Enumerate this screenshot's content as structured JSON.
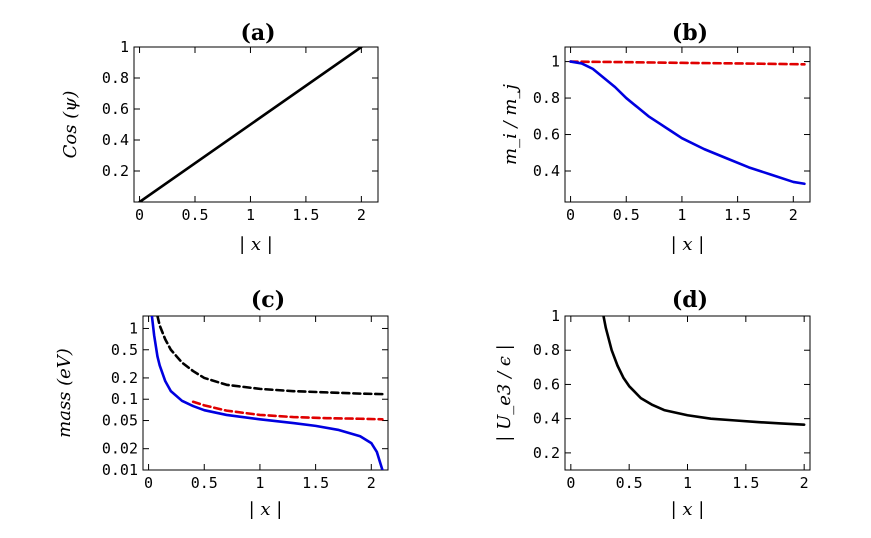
{
  "chart_data": [
    {
      "type": "line",
      "panel": "(a)",
      "title": "(a)",
      "xlabel": "| x |",
      "ylabel": "Cos (ψ)",
      "xlim": [
        -0.05,
        2.15
      ],
      "ylim": [
        0,
        1
      ],
      "yscale": "linear",
      "xticks": [
        0,
        0.5,
        1,
        1.5,
        2
      ],
      "xtick_labels": [
        "0",
        "0.5",
        "1",
        "1.5",
        "2"
      ],
      "yticks": [
        0.2,
        0.4,
        0.6,
        0.8,
        1
      ],
      "ytick_labels": [
        "0.2",
        "0.4",
        "0.6",
        "0.8",
        "1"
      ],
      "grid": false,
      "series": [
        {
          "style": "solid",
          "color": "#000000",
          "x": [
            0,
            2
          ],
          "y": [
            0,
            1
          ]
        }
      ]
    },
    {
      "type": "line",
      "panel": "(b)",
      "title": "(b)",
      "xlabel": "| x |",
      "ylabel": "m_i / m_j",
      "xlim": [
        -0.05,
        2.15
      ],
      "ylim": [
        0.23,
        1.08
      ],
      "yscale": "linear",
      "xticks": [
        0,
        0.5,
        1,
        1.5,
        2
      ],
      "xtick_labels": [
        "0",
        "0.5",
        "1",
        "1.5",
        "2"
      ],
      "yticks": [
        0.4,
        0.6,
        0.8,
        1
      ],
      "ytick_labels": [
        "0.4",
        "0.6",
        "0.8",
        "1"
      ],
      "grid": false,
      "series": [
        {
          "style": "dashed",
          "color": "#e00000",
          "x": [
            0,
            0.5,
            1,
            1.5,
            2.1
          ],
          "y": [
            1.0,
            0.997,
            0.993,
            0.99,
            0.985
          ]
        },
        {
          "style": "solid",
          "color": "#0000e0",
          "x": [
            0,
            0.1,
            0.2,
            0.3,
            0.4,
            0.5,
            0.6,
            0.7,
            0.8,
            0.9,
            1.0,
            1.2,
            1.4,
            1.6,
            1.8,
            2.0,
            2.1
          ],
          "y": [
            1.0,
            0.99,
            0.96,
            0.91,
            0.86,
            0.8,
            0.75,
            0.7,
            0.66,
            0.62,
            0.58,
            0.52,
            0.47,
            0.42,
            0.38,
            0.34,
            0.33
          ]
        }
      ]
    },
    {
      "type": "line",
      "panel": "(c)",
      "title": "(c)",
      "xlabel": "| x |",
      "ylabel": "mass (eV)",
      "xlim": [
        -0.05,
        2.15
      ],
      "ylim": [
        0.01,
        1.5
      ],
      "yscale": "log",
      "xticks": [
        0,
        0.5,
        1,
        1.5,
        2
      ],
      "xtick_labels": [
        "0",
        "0.5",
        "1",
        "1.5",
        "2"
      ],
      "yticks": [
        0.01,
        0.02,
        0.05,
        0.1,
        0.2,
        0.5,
        1
      ],
      "ytick_labels": [
        "0.01",
        "0.02",
        "0.05",
        "0.1",
        "0.2",
        "0.5",
        "1"
      ],
      "grid": false,
      "series": [
        {
          "style": "dashed",
          "color": "#000000",
          "x": [
            0.08,
            0.1,
            0.15,
            0.2,
            0.3,
            0.4,
            0.5,
            0.7,
            1.0,
            1.3,
            1.6,
            1.9,
            2.1
          ],
          "y": [
            1.5,
            1.1,
            0.7,
            0.5,
            0.33,
            0.25,
            0.2,
            0.16,
            0.14,
            0.13,
            0.125,
            0.12,
            0.118
          ]
        },
        {
          "style": "dashed",
          "color": "#e00000",
          "x": [
            0.4,
            0.5,
            0.7,
            1.0,
            1.3,
            1.6,
            1.9,
            2.1
          ],
          "y": [
            0.092,
            0.082,
            0.069,
            0.06,
            0.056,
            0.054,
            0.053,
            0.052
          ]
        },
        {
          "style": "solid",
          "color": "#0000e0",
          "x": [
            0.03,
            0.05,
            0.08,
            0.1,
            0.15,
            0.2,
            0.3,
            0.4,
            0.5,
            0.7,
            1.0,
            1.3,
            1.5,
            1.7,
            1.9,
            2.0,
            2.05,
            2.1
          ],
          "y": [
            1.5,
            0.8,
            0.4,
            0.3,
            0.18,
            0.13,
            0.095,
            0.08,
            0.07,
            0.06,
            0.052,
            0.046,
            0.042,
            0.037,
            0.03,
            0.024,
            0.018,
            0.01
          ]
        }
      ]
    },
    {
      "type": "line",
      "panel": "(d)",
      "title": "(d)",
      "xlabel": "| x |",
      "ylabel": "| U_e3 / ϵ |",
      "xlim": [
        -0.05,
        2.05
      ],
      "ylim": [
        0.1,
        1
      ],
      "yscale": "linear",
      "xticks": [
        0,
        0.5,
        1,
        1.5,
        2
      ],
      "xtick_labels": [
        "0",
        "0.5",
        "1",
        "1.5",
        "2"
      ],
      "yticks": [
        0.2,
        0.4,
        0.6,
        0.8,
        1
      ],
      "ytick_labels": [
        "0.2",
        "0.4",
        "0.6",
        "0.8",
        "1"
      ],
      "grid": false,
      "series": [
        {
          "style": "solid",
          "color": "#000000",
          "x": [
            0.28,
            0.3,
            0.35,
            0.4,
            0.45,
            0.5,
            0.6,
            0.7,
            0.8,
            1.0,
            1.2,
            1.4,
            1.6,
            1.8,
            2.0
          ],
          "y": [
            1.0,
            0.93,
            0.8,
            0.71,
            0.64,
            0.59,
            0.52,
            0.48,
            0.45,
            0.42,
            0.4,
            0.39,
            0.38,
            0.372,
            0.365
          ]
        }
      ]
    }
  ]
}
